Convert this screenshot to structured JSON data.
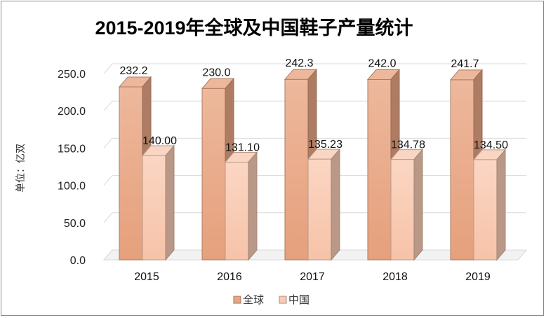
{
  "chart_data": {
    "type": "bar",
    "title": "2015-2019年全球及中国鞋子产量统计",
    "ylabel": "单位：亿双",
    "xlabel": "",
    "categories": [
      "2015",
      "2016",
      "2017",
      "2018",
      "2019"
    ],
    "ylim": [
      0,
      250
    ],
    "yticks": [
      "0.0",
      "50.0",
      "100.0",
      "150.0",
      "200.0",
      "250.0"
    ],
    "grid": true,
    "legend_position": "bottom",
    "three_d": true,
    "series": [
      {
        "name": "全球",
        "values": [
          232.2,
          230.0,
          242.3,
          242.0,
          241.7
        ],
        "labels": [
          "232.2",
          "230.0",
          "242.3",
          "242.0",
          "241.7"
        ],
        "color": "#E8A582"
      },
      {
        "name": "中国",
        "values": [
          140.0,
          131.1,
          135.23,
          134.78,
          134.5
        ],
        "labels": [
          "140.00",
          "131.10",
          "135.23",
          "134.78",
          "134.50"
        ],
        "color": "#F8CBB4"
      }
    ]
  }
}
